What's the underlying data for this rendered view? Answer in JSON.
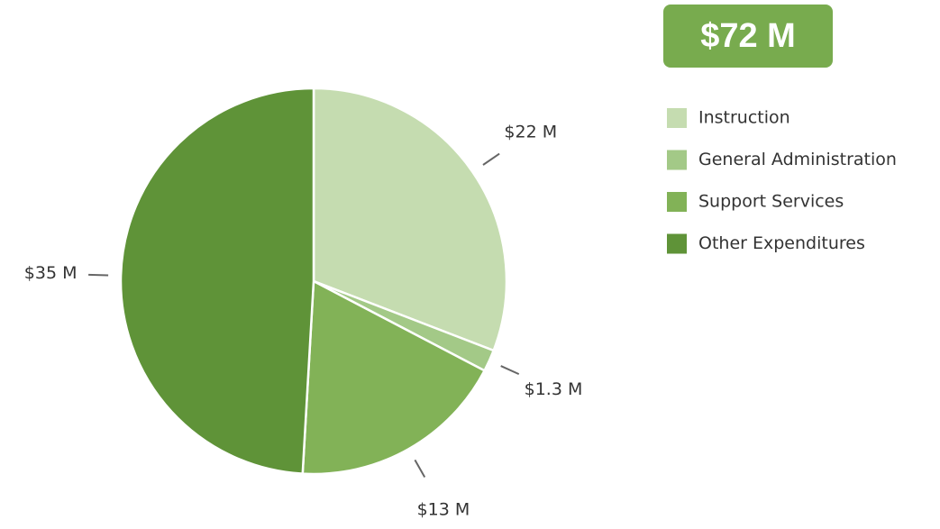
{
  "chart_data": {
    "type": "pie",
    "total": "$72 M",
    "categories": [
      "Instruction",
      "General Administration",
      "Support Services",
      "Other Expenditures"
    ],
    "values": [
      22,
      1.3,
      13,
      35
    ],
    "value_labels": [
      "$22 M",
      "$1.3 M",
      "$13 M",
      "$35 M"
    ],
    "colors": [
      "#c5dcb0",
      "#a3c987",
      "#82b257",
      "#5f9338"
    ],
    "legend": "right"
  }
}
